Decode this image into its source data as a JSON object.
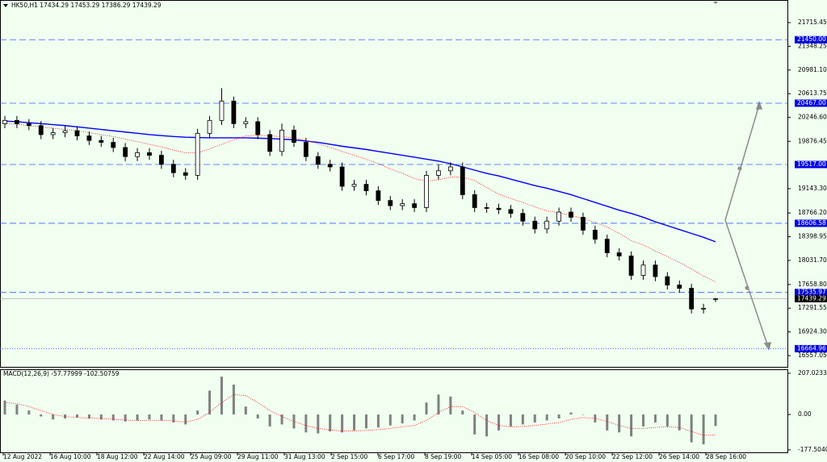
{
  "chart_data": [
    {
      "type": "candlestick",
      "title": "HK50,H1  17434.29 17453.29 17386.29 17439.29",
      "color": "#000000",
      "open": [
        20150,
        20200,
        20150,
        20120,
        19980,
        20010,
        20040,
        19960,
        19890,
        19860,
        19780,
        19640,
        19700,
        19660,
        19520,
        19390,
        19350,
        20000,
        20200,
        20500,
        20150,
        20180,
        19980,
        19720,
        20050,
        19860,
        19640,
        19520,
        19480,
        19180,
        19210,
        19110,
        18960,
        18880,
        18910,
        18850,
        19350,
        19420,
        19480,
        19050,
        18850,
        18840,
        18820,
        18760,
        18640,
        18520,
        18640,
        18780,
        18700,
        18500,
        18360,
        18150,
        18100,
        17800,
        17960,
        17780,
        17650,
        17600,
        17280,
        17434.29
      ],
      "high": [
        20270,
        20270,
        20220,
        20190,
        20080,
        20110,
        20110,
        20030,
        19960,
        19930,
        19850,
        19770,
        19770,
        19730,
        19590,
        19460,
        20070,
        20270,
        20700,
        20570,
        20250,
        20250,
        20050,
        20150,
        20120,
        19930,
        19710,
        19590,
        19550,
        19280,
        19280,
        19180,
        19030,
        18980,
        18980,
        19420,
        19520,
        19550,
        19550,
        19120,
        18920,
        18910,
        18890,
        18830,
        18710,
        18710,
        18850,
        18850,
        18770,
        18570,
        18430,
        18220,
        18170,
        18030,
        18030,
        17850,
        17720,
        17670,
        17360,
        17453.29
      ],
      "low": [
        20080,
        20080,
        20050,
        19910,
        19910,
        19940,
        19890,
        19820,
        19790,
        19710,
        19570,
        19570,
        19590,
        19450,
        19320,
        19280,
        19280,
        19930,
        20130,
        20080,
        20080,
        19910,
        19650,
        19650,
        19790,
        19570,
        19450,
        19410,
        19110,
        19110,
        19040,
        18890,
        18810,
        18810,
        18780,
        18780,
        19280,
        19350,
        18980,
        18780,
        18770,
        18750,
        18690,
        18570,
        18450,
        18450,
        18570,
        18630,
        18430,
        18290,
        18080,
        18030,
        17730,
        17730,
        17710,
        17580,
        17530,
        17210,
        17210,
        17386.29
      ],
      "close": [
        20200,
        20150,
        20120,
        19980,
        20010,
        20040,
        19960,
        19890,
        19860,
        19780,
        19640,
        19700,
        19660,
        19520,
        19390,
        19350,
        20000,
        20200,
        20500,
        20150,
        20180,
        19980,
        19720,
        20050,
        19860,
        19640,
        19520,
        19480,
        19180,
        19210,
        19110,
        18960,
        18880,
        18910,
        18850,
        19350,
        19420,
        19480,
        19050,
        18850,
        18840,
        18820,
        18760,
        18640,
        18520,
        18640,
        18780,
        18700,
        18500,
        18360,
        18150,
        18100,
        17800,
        17960,
        17780,
        17650,
        17600,
        17280,
        17290,
        17439.29
      ],
      "lines": [
        {
          "color": "#0000ff",
          "style": "solid",
          "values": [
            20190,
            20180,
            20165,
            20150,
            20135,
            20120,
            20100,
            20080,
            20060,
            20040,
            20020,
            20000,
            19980,
            19965,
            19950,
            19940,
            19935,
            19930,
            19930,
            19930,
            19930,
            19925,
            19920,
            19910,
            19900,
            19880,
            19860,
            19830,
            19800,
            19775,
            19750,
            19720,
            19690,
            19660,
            19630,
            19600,
            19570,
            19530,
            19480,
            19430,
            19380,
            19340,
            19290,
            19240,
            19190,
            19150,
            19100,
            19050,
            18990,
            18930,
            18870,
            18810,
            18760,
            18700,
            18630,
            18570,
            18510,
            18450,
            18390,
            18320
          ]
        },
        {
          "color": "#ff0000",
          "style": "dotted",
          "values": [
            20150,
            20140,
            20120,
            20100,
            20080,
            20060,
            20040,
            20010,
            19980,
            19950,
            19910,
            19870,
            19830,
            19790,
            19740,
            19700,
            19700,
            19760,
            19830,
            19900,
            19960,
            19970,
            19960,
            19950,
            19930,
            19890,
            19840,
            19780,
            19720,
            19660,
            19600,
            19530,
            19450,
            19380,
            19300,
            19260,
            19280,
            19320,
            19320,
            19270,
            19160,
            19060,
            18990,
            18930,
            18860,
            18800,
            18770,
            18730,
            18680,
            18620,
            18550,
            18450,
            18340,
            18270,
            18180,
            18090,
            18000,
            17900,
            17790,
            17700
          ]
        }
      ],
      "ylim": [
        16383,
        22065
      ],
      "yticks": [
        21715.45,
        21348.25,
        {
          "value": 20981.1,
          "label": "20981.10"
        },
        20613.75,
        {
          "value": 20246.6,
          "label": "20246.60"
        },
        19876.45,
        {
          "value": 19143.3,
          "label": "19143.30"
        },
        {
          "value": 18766.2,
          "label": "18766.20"
        },
        18398.95,
        {
          "value": 18031.7,
          "label": "18031.70"
        },
        {
          "value": 17658.8,
          "label": "17658.80"
        },
        17291.55,
        {
          "value": 16924.3,
          "label": "16924.30"
        },
        16557.05
      ],
      "levels": [
        {
          "value": 21450,
          "label": "21450.00",
          "style": "dashed"
        },
        {
          "value": 20467,
          "label": "20467.00",
          "style": "dashed"
        },
        {
          "value": 19517,
          "label": "19517.00",
          "style": "dashed"
        },
        {
          "value": 18606.58,
          "label": "18606.58",
          "style": "dashed"
        },
        {
          "value": 17535.97,
          "label": "17535.97",
          "style": "dashed"
        },
        {
          "value": 16664.96,
          "label": "16664.96",
          "style": "dotted"
        }
      ],
      "current": {
        "value": 17439.29,
        "label": "17439.29"
      },
      "time_labels": [
        "12 Aug 2022",
        "16 Aug 10:00",
        "18 Aug 12:00",
        "22 Aug 14:00",
        "25 Aug 09:00",
        "29 Aug 11:00",
        "31 Aug 13:00",
        "2 Sep 15:00",
        "6 Sep 17:00",
        "8 Sep 19:00",
        "14 Sep 05:00",
        "16 Sep 08:00",
        "20 Sep 10:00",
        "22 Sep 12:00",
        "26 Sep 14:00",
        "28 Sep 16:00"
      ]
    },
    {
      "type": "bar",
      "title": "MACD(12,26,9) -57.77999 -102.50759",
      "color": "#808080",
      "values": [
        70,
        50,
        20,
        -10,
        -25,
        -20,
        -15,
        -20,
        -25,
        -30,
        -35,
        -30,
        -25,
        -30,
        -40,
        -50,
        20,
        120,
        190,
        150,
        40,
        -20,
        -60,
        -50,
        -70,
        -90,
        -95,
        -85,
        -90,
        -80,
        -70,
        -65,
        -55,
        -45,
        -30,
        60,
        100,
        90,
        20,
        -100,
        -110,
        -80,
        -60,
        -50,
        -40,
        -30,
        -20,
        10,
        0,
        -40,
        -80,
        -90,
        -110,
        -60,
        -40,
        -60,
        -80,
        -140,
        -150,
        -57.77999
      ],
      "signal": {
        "color": "#ff0000",
        "values": [
          60,
          55,
          40,
          20,
          0,
          -10,
          -15,
          -18,
          -20,
          -24,
          -28,
          -30,
          -29,
          -29,
          -32,
          -38,
          -25,
          10,
          60,
          100,
          95,
          60,
          20,
          -10,
          -35,
          -55,
          -70,
          -78,
          -83,
          -83,
          -80,
          -76,
          -70,
          -62,
          -55,
          -30,
          10,
          40,
          40,
          10,
          -30,
          -55,
          -62,
          -60,
          -55,
          -48,
          -40,
          -25,
          -15,
          -20,
          -35,
          -55,
          -70,
          -70,
          -65,
          -62,
          -65,
          -85,
          -105,
          -102.50759
        ]
      },
      "ylim": [
        -190,
        223
      ],
      "yticks": [
        207.02333,
        {
          "value": 0,
          "label": "0.00"
        },
        -177.50405
      ]
    }
  ]
}
